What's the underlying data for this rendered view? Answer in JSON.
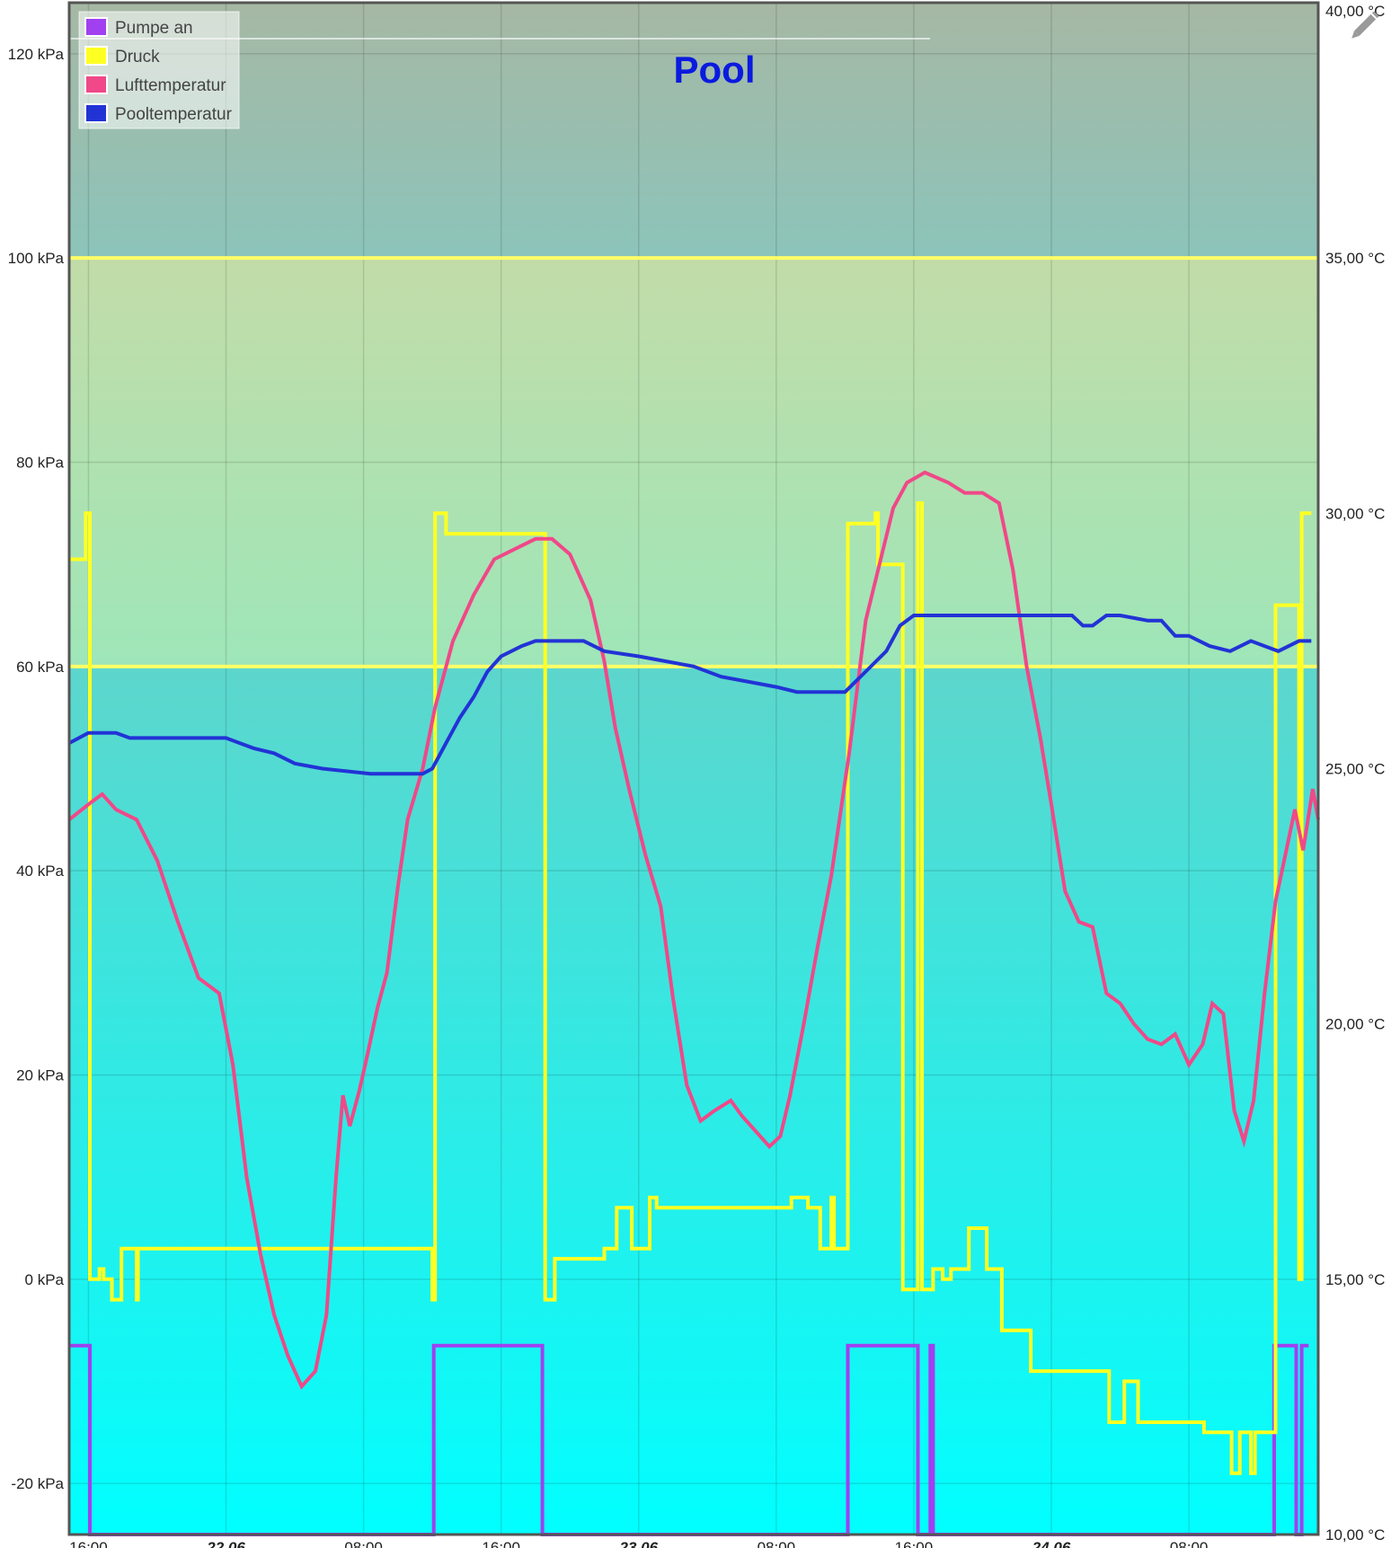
{
  "chart_data": {
    "type": "line",
    "title": "Pool",
    "title_color": "#0a1adf",
    "legend_position": "top-left",
    "grid": true,
    "x_unit": "hours",
    "x_range": [
      -1.4,
      89.4
    ],
    "x_ticks": [
      {
        "x": 0,
        "label": "16:00",
        "bold": false
      },
      {
        "x": 10,
        "label": "22.06",
        "bold": true
      },
      {
        "x": 20,
        "label": "08:00",
        "bold": false
      },
      {
        "x": 30,
        "label": "16:00",
        "bold": false
      },
      {
        "x": 40,
        "label": "23.06",
        "bold": true
      },
      {
        "x": 50,
        "label": "08:00",
        "bold": false
      },
      {
        "x": 60,
        "label": "16:00",
        "bold": false
      },
      {
        "x": 70,
        "label": "24.06",
        "bold": true
      },
      {
        "x": 80,
        "label": "08:00",
        "bold": false
      }
    ],
    "y_left": {
      "unit": "kPa",
      "range": [
        -25,
        125
      ],
      "ticks": [
        {
          "v": -20,
          "label": "-20 kPa"
        },
        {
          "v": 0,
          "label": "0 kPa"
        },
        {
          "v": 20,
          "label": "20 kPa"
        },
        {
          "v": 40,
          "label": "40 kPa"
        },
        {
          "v": 60,
          "label": "60 kPa"
        },
        {
          "v": 80,
          "label": "80 kPa"
        },
        {
          "v": 100,
          "label": "100 kPa"
        },
        {
          "v": 120,
          "label": "120 kPa"
        }
      ]
    },
    "y_right": {
      "unit": "°C",
      "range": [
        10,
        40
      ],
      "ticks": [
        {
          "v": 10,
          "label": "10,00 °C"
        },
        {
          "v": 15,
          "label": "15,00 °C"
        },
        {
          "v": 20,
          "label": "20,00 °C"
        },
        {
          "v": 25,
          "label": "25,00 °C"
        },
        {
          "v": 30,
          "label": "30,00 °C"
        },
        {
          "v": 35,
          "label": "35,00 °C"
        },
        {
          "v": 40,
          "label": "40,00 °C"
        }
      ]
    },
    "bands": [
      {
        "from": 100,
        "to": 125,
        "color": "#9ebcb0"
      },
      {
        "from": 60,
        "to": 100,
        "color": "#b2dfaa"
      },
      {
        "from": -25,
        "to": 60,
        "color": "#00f6f6"
      }
    ],
    "threshold_lines": [
      {
        "v": 100,
        "color": "#ffff66"
      },
      {
        "v": 60,
        "color": "#ffff66"
      }
    ],
    "series": [
      {
        "name": "Pumpe an",
        "color": "#a040f0",
        "axis": "left",
        "step": true,
        "points": [
          [
            -1.4,
            -6.5
          ],
          [
            0.1,
            -6.5
          ],
          [
            0.1,
            -25
          ],
          [
            25.1,
            -25
          ],
          [
            25.1,
            -6.5
          ],
          [
            33,
            -6.5
          ],
          [
            33,
            -25
          ],
          [
            55.2,
            -25
          ],
          [
            55.2,
            -6.5
          ],
          [
            60.3,
            -6.5
          ],
          [
            60.3,
            -25
          ],
          [
            61.2,
            -25
          ],
          [
            61.2,
            -6.5
          ],
          [
            61.4,
            -6.5
          ],
          [
            61.4,
            -25
          ],
          [
            86.2,
            -25
          ],
          [
            86.2,
            -6.5
          ],
          [
            87.8,
            -6.5
          ],
          [
            87.8,
            -25
          ],
          [
            88.2,
            -25
          ],
          [
            88.2,
            -6.5
          ],
          [
            88.7,
            -6.5
          ]
        ]
      },
      {
        "name": "Druck",
        "color": "#ffff22",
        "axis": "left",
        "step": true,
        "points": [
          [
            -1.4,
            70.5
          ],
          [
            -0.2,
            70.5
          ],
          [
            -0.2,
            75
          ],
          [
            0.1,
            75
          ],
          [
            0.1,
            0
          ],
          [
            0.8,
            0
          ],
          [
            0.8,
            1
          ],
          [
            1.1,
            1
          ],
          [
            1.1,
            0
          ],
          [
            1.7,
            0
          ],
          [
            1.7,
            -2
          ],
          [
            2.4,
            -2
          ],
          [
            2.4,
            3
          ],
          [
            3.5,
            3
          ],
          [
            3.5,
            -2
          ],
          [
            3.6,
            -2
          ],
          [
            3.6,
            3
          ],
          [
            25,
            3
          ],
          [
            25,
            -2
          ],
          [
            25.2,
            -2
          ],
          [
            25.2,
            75
          ],
          [
            26,
            75
          ],
          [
            26,
            73
          ],
          [
            33.2,
            73
          ],
          [
            33.2,
            -2
          ],
          [
            33.9,
            -2
          ],
          [
            33.9,
            2
          ],
          [
            37.5,
            2
          ],
          [
            37.5,
            3
          ],
          [
            38.4,
            3
          ],
          [
            38.4,
            7
          ],
          [
            39.5,
            7
          ],
          [
            39.5,
            3
          ],
          [
            40.8,
            3
          ],
          [
            40.8,
            8
          ],
          [
            41.3,
            8
          ],
          [
            41.3,
            7
          ],
          [
            51.1,
            7
          ],
          [
            51.1,
            8
          ],
          [
            52.3,
            8
          ],
          [
            52.3,
            7
          ],
          [
            53.2,
            7
          ],
          [
            53.2,
            3
          ],
          [
            54,
            3
          ],
          [
            54,
            8
          ],
          [
            54.2,
            8
          ],
          [
            54.2,
            3
          ],
          [
            55.2,
            3
          ],
          [
            55.2,
            74
          ],
          [
            57.2,
            74
          ],
          [
            57.2,
            75
          ],
          [
            57.4,
            75
          ],
          [
            57.4,
            70
          ],
          [
            59.2,
            70
          ],
          [
            59.2,
            -1
          ],
          [
            60.3,
            -1
          ],
          [
            60.3,
            76
          ],
          [
            60.6,
            76
          ],
          [
            60.6,
            -1
          ],
          [
            61.4,
            -1
          ],
          [
            61.4,
            1
          ],
          [
            62.1,
            1
          ],
          [
            62.1,
            0
          ],
          [
            62.7,
            0
          ],
          [
            62.7,
            1
          ],
          [
            64,
            1
          ],
          [
            64,
            5
          ],
          [
            65.3,
            5
          ],
          [
            65.3,
            1
          ],
          [
            66.4,
            1
          ],
          [
            66.4,
            -5
          ],
          [
            68.5,
            -5
          ],
          [
            68.5,
            -9
          ],
          [
            74.2,
            -9
          ],
          [
            74.2,
            -14
          ],
          [
            75.3,
            -14
          ],
          [
            75.3,
            -10
          ],
          [
            76.3,
            -10
          ],
          [
            76.3,
            -14
          ],
          [
            81.1,
            -14
          ],
          [
            81.1,
            -15
          ],
          [
            83.1,
            -15
          ],
          [
            83.1,
            -19
          ],
          [
            83.7,
            -19
          ],
          [
            83.7,
            -15
          ],
          [
            84.5,
            -15
          ],
          [
            84.5,
            -19
          ],
          [
            84.8,
            -19
          ],
          [
            84.8,
            -15
          ],
          [
            86.3,
            -15
          ],
          [
            86.3,
            66
          ],
          [
            88,
            66
          ],
          [
            88,
            0
          ],
          [
            88.2,
            0
          ],
          [
            88.2,
            75
          ],
          [
            88.9,
            75
          ]
        ]
      },
      {
        "name": "Lufttemperatur",
        "color": "#f04888",
        "axis": "right",
        "step": false,
        "points": [
          [
            -1.4,
            24
          ],
          [
            0,
            24.3
          ],
          [
            1,
            24.5
          ],
          [
            2,
            24.2
          ],
          [
            3.5,
            24
          ],
          [
            5,
            23.2
          ],
          [
            6.5,
            22
          ],
          [
            8,
            20.9
          ],
          [
            9.5,
            20.6
          ],
          [
            10.5,
            19.2
          ],
          [
            11.5,
            17
          ],
          [
            12.5,
            15.5
          ],
          [
            13.5,
            14.3
          ],
          [
            14.5,
            13.5
          ],
          [
            15.5,
            12.9
          ],
          [
            16.5,
            13.2
          ],
          [
            17.3,
            14.3
          ],
          [
            18,
            17
          ],
          [
            18.5,
            18.6
          ],
          [
            19,
            18
          ],
          [
            19.7,
            18.7
          ],
          [
            20.2,
            19.3
          ],
          [
            21,
            20.3
          ],
          [
            21.7,
            21
          ],
          [
            22.5,
            22.7
          ],
          [
            23.2,
            24
          ],
          [
            24.3,
            25
          ],
          [
            25.2,
            26.2
          ],
          [
            26.5,
            27.5
          ],
          [
            28,
            28.4
          ],
          [
            29.5,
            29.1
          ],
          [
            31,
            29.3
          ],
          [
            32.5,
            29.5
          ],
          [
            33.7,
            29.5
          ],
          [
            35,
            29.2
          ],
          [
            36.5,
            28.3
          ],
          [
            37.5,
            27.1
          ],
          [
            38.3,
            25.8
          ],
          [
            39.3,
            24.6
          ],
          [
            40.5,
            23.3
          ],
          [
            41.6,
            22.3
          ],
          [
            42.5,
            20.5
          ],
          [
            43.5,
            18.8
          ],
          [
            44.5,
            18.1
          ],
          [
            45.5,
            18.3
          ],
          [
            46.7,
            18.5
          ],
          [
            47.5,
            18.2
          ],
          [
            48.5,
            17.9
          ],
          [
            49.5,
            17.6
          ],
          [
            50.3,
            17.8
          ],
          [
            51,
            18.6
          ],
          [
            52,
            20
          ],
          [
            53,
            21.5
          ],
          [
            54,
            22.9
          ],
          [
            55.3,
            25.3
          ],
          [
            56.5,
            27.9
          ],
          [
            57.5,
            29
          ],
          [
            58.5,
            30.1
          ],
          [
            59.5,
            30.6
          ],
          [
            60.8,
            30.8
          ],
          [
            62.5,
            30.6
          ],
          [
            63.7,
            30.4
          ],
          [
            65,
            30.4
          ],
          [
            66.2,
            30.2
          ],
          [
            67.2,
            28.9
          ],
          [
            68.2,
            27
          ],
          [
            69.2,
            25.6
          ],
          [
            70,
            24.3
          ],
          [
            71,
            22.6
          ],
          [
            72,
            22
          ],
          [
            73,
            21.9
          ],
          [
            74,
            20.6
          ],
          [
            75,
            20.4
          ],
          [
            76,
            20
          ],
          [
            77,
            19.7
          ],
          [
            78,
            19.6
          ],
          [
            79,
            19.8
          ],
          [
            80,
            19.2
          ],
          [
            81,
            19.6
          ],
          [
            81.7,
            20.4
          ],
          [
            82.5,
            20.2
          ],
          [
            83.3,
            18.3
          ],
          [
            84,
            17.7
          ],
          [
            84.7,
            18.5
          ],
          [
            85.5,
            20.6
          ],
          [
            86.3,
            22.4
          ],
          [
            87,
            23.3
          ],
          [
            87.7,
            24.2
          ],
          [
            88.3,
            23.4
          ],
          [
            89,
            24.6
          ],
          [
            89.4,
            24
          ]
        ]
      },
      {
        "name": "Pooltemperatur",
        "color": "#2233d6",
        "axis": "right",
        "step": true,
        "points": [
          [
            -1.4,
            25.5
          ],
          [
            0,
            25.7
          ],
          [
            2,
            25.7
          ],
          [
            3,
            25.6
          ],
          [
            10,
            25.6
          ],
          [
            11,
            25.5
          ],
          [
            12,
            25.4
          ],
          [
            13.5,
            25.3
          ],
          [
            15,
            25.1
          ],
          [
            17,
            25
          ],
          [
            20.5,
            24.9
          ],
          [
            24.3,
            24.9
          ],
          [
            25,
            25
          ],
          [
            26,
            25.5
          ],
          [
            27,
            26
          ],
          [
            28,
            26.4
          ],
          [
            29,
            26.9
          ],
          [
            30,
            27.2
          ],
          [
            31.5,
            27.4
          ],
          [
            32.5,
            27.5
          ],
          [
            33.5,
            27.5
          ],
          [
            36,
            27.5
          ],
          [
            37.5,
            27.3
          ],
          [
            40,
            27.2
          ],
          [
            42,
            27.1
          ],
          [
            44,
            27
          ],
          [
            46,
            26.8
          ],
          [
            48,
            26.7
          ],
          [
            50,
            26.6
          ],
          [
            51.5,
            26.5
          ],
          [
            54,
            26.5
          ],
          [
            55,
            26.5
          ],
          [
            56.5,
            26.9
          ],
          [
            58,
            27.3
          ],
          [
            59,
            27.8
          ],
          [
            60,
            28
          ],
          [
            62,
            28
          ],
          [
            66,
            28
          ],
          [
            70,
            28
          ],
          [
            71.5,
            28
          ],
          [
            72.3,
            27.8
          ],
          [
            73,
            27.8
          ],
          [
            74,
            28
          ],
          [
            75,
            28
          ],
          [
            77,
            27.9
          ],
          [
            78,
            27.9
          ],
          [
            79,
            27.6
          ],
          [
            80,
            27.6
          ],
          [
            81.5,
            27.4
          ],
          [
            83,
            27.3
          ],
          [
            84.5,
            27.5
          ],
          [
            85.5,
            27.4
          ],
          [
            86.5,
            27.3
          ],
          [
            88,
            27.5
          ],
          [
            88.9,
            27.5
          ]
        ]
      }
    ]
  },
  "toolbar": {
    "edit_icon": "pencil-icon"
  }
}
